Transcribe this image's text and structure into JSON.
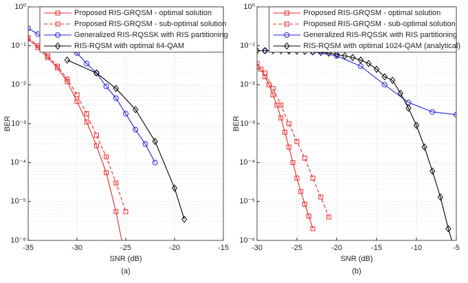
{
  "chart_data": [
    {
      "type": "line",
      "caption": "(a)",
      "xlabel": "SNR (dB)",
      "ylabel": "BER",
      "log_y": true,
      "grid": true,
      "minor_grid": true,
      "legend": "top",
      "xlim": [
        -35,
        -15
      ],
      "xticks": [
        -35,
        -30,
        -25,
        -20,
        -15
      ],
      "ylim": [
        1e-06,
        1
      ],
      "yticks": [
        {
          "value": 1e-06,
          "label": "10⁻⁶"
        },
        {
          "value": 1e-05,
          "label": "10⁻⁵"
        },
        {
          "value": 0.0001,
          "label": "10⁻⁴"
        },
        {
          "value": 0.001,
          "label": "10⁻³"
        },
        {
          "value": 0.01,
          "label": "10⁻²"
        },
        {
          "value": 0.1,
          "label": "10⁻¹"
        },
        {
          "value": 1,
          "label": "10⁰"
        }
      ],
      "series": [
        {
          "name": "Proposed RIS-GRQSM - optimal solution",
          "color": "#e8282b",
          "dash": false,
          "marker": "square",
          "x": [
            -35,
            -34,
            -33,
            -32,
            -31,
            -30,
            -29,
            -28,
            -27,
            -26,
            -25
          ],
          "values": [
            0.15,
            0.09,
            0.05,
            0.027,
            0.012,
            0.0037,
            0.0011,
            0.00027,
            5.5e-05,
            5.5e-06,
            3e-07
          ]
        },
        {
          "name": "Proposed RIS-GRQSM - sub-optimal solution",
          "color": "#e8282b",
          "dash": true,
          "marker": "square",
          "x": [
            -35,
            -34,
            -33,
            -32,
            -31,
            -30,
            -29,
            -28,
            -27,
            -26,
            -25
          ],
          "values": [
            0.16,
            0.1,
            0.055,
            0.03,
            0.014,
            0.0055,
            0.0018,
            0.0005,
            0.00014,
            3e-05,
            5.5e-06
          ]
        },
        {
          "name": "Generalized RIS-RQSSK with RIS partitioning",
          "color": "#2323e0",
          "dash": false,
          "marker": "circle",
          "x": [
            -35,
            -34,
            -33,
            -32,
            -31,
            -30,
            -29,
            -28,
            -27,
            -26,
            -25,
            -24,
            -23,
            -22
          ],
          "values": [
            0.28,
            0.2,
            0.14,
            0.1,
            0.08,
            0.065,
            0.035,
            0.02,
            0.009,
            0.0045,
            0.0018,
            0.0007,
            0.0003,
            0.0001
          ]
        },
        {
          "name": "RIS-RQSM with optimal 64-QAM",
          "color": "#000000",
          "dash": false,
          "marker": "diamond",
          "x": [
            -31,
            -28,
            -26,
            -24,
            -22,
            -20,
            -19
          ],
          "values": [
            0.043,
            0.02,
            0.008,
            0.0023,
            0.00035,
            2.2e-05,
            3.5e-06
          ]
        }
      ]
    },
    {
      "type": "line",
      "caption": "(b)",
      "xlabel": "SNR (dB)",
      "ylabel": "BER",
      "log_y": true,
      "grid": true,
      "minor_grid": true,
      "legend": "top",
      "xlim": [
        -30,
        -5
      ],
      "xticks": [
        -30,
        -25,
        -20,
        -15,
        -10,
        -5
      ],
      "ylim": [
        1e-06,
        1
      ],
      "yticks": [
        {
          "value": 1e-06,
          "label": "10⁻⁶"
        },
        {
          "value": 1e-05,
          "label": "10⁻⁵"
        },
        {
          "value": 0.0001,
          "label": "10⁻⁴"
        },
        {
          "value": 0.001,
          "label": "10⁻³"
        },
        {
          "value": 0.01,
          "label": "10⁻²"
        },
        {
          "value": 0.1,
          "label": "10⁻¹"
        },
        {
          "value": 1,
          "label": "10⁰"
        }
      ],
      "series": [
        {
          "name": "Proposed RIS-GRQSM - optimal solution",
          "color": "#e8282b",
          "dash": false,
          "marker": "square",
          "x": [
            -30,
            -29.5,
            -29,
            -28.5,
            -28,
            -27.5,
            -27,
            -26.5,
            -26,
            -25.5,
            -25,
            -24.5,
            -24,
            -23.5,
            -23
          ],
          "values": [
            0.035,
            0.025,
            0.016,
            0.01,
            0.0055,
            0.003,
            0.0014,
            0.0006,
            0.00025,
            0.0001,
            4e-05,
            1.8e-05,
            8.5e-06,
            4.2e-06,
            2e-06
          ]
        },
        {
          "name": "Proposed RIS-GRQSM - sub-optimal solution",
          "color": "#e8282b",
          "dash": true,
          "marker": "square",
          "x": [
            -30,
            -29,
            -28,
            -27,
            -26,
            -25,
            -24,
            -23,
            -22,
            -21
          ],
          "values": [
            0.028,
            0.02,
            0.008,
            0.003,
            0.001,
            0.00035,
            0.00013,
            4e-05,
            1.3e-05,
            4e-06
          ]
        },
        {
          "name": "Generalized RIS-RQSSK with RIS partitioning",
          "color": "#2323e0",
          "dash": false,
          "marker": "circle",
          "x": [
            -29,
            -26,
            -23,
            -20,
            -17,
            -14,
            -11,
            -8,
            -5
          ],
          "values": [
            0.075,
            0.075,
            0.07,
            0.055,
            0.03,
            0.01,
            0.0035,
            0.002,
            0.0017
          ]
        },
        {
          "name": "RIS-RQSM with optimal 1024-QAM (analytical)",
          "color": "#000000",
          "dash": false,
          "marker": "diamond",
          "x": [
            -30,
            -29,
            -28,
            -27,
            -26,
            -25,
            -24,
            -23,
            -22,
            -21,
            -20,
            -19,
            -18,
            -17,
            -16,
            -15,
            -14,
            -13,
            -12,
            -11,
            -10,
            -9,
            -8,
            -7,
            -6,
            -5
          ],
          "values": [
            0.075,
            0.075,
            0.075,
            0.075,
            0.074,
            0.073,
            0.072,
            0.07,
            0.068,
            0.065,
            0.06,
            0.055,
            0.05,
            0.043,
            0.035,
            0.025,
            0.016,
            0.013,
            0.006,
            0.0025,
            0.0009,
            0.00025,
            6e-05,
            1.3e-05,
            2e-06,
            4e-07
          ]
        }
      ]
    }
  ]
}
